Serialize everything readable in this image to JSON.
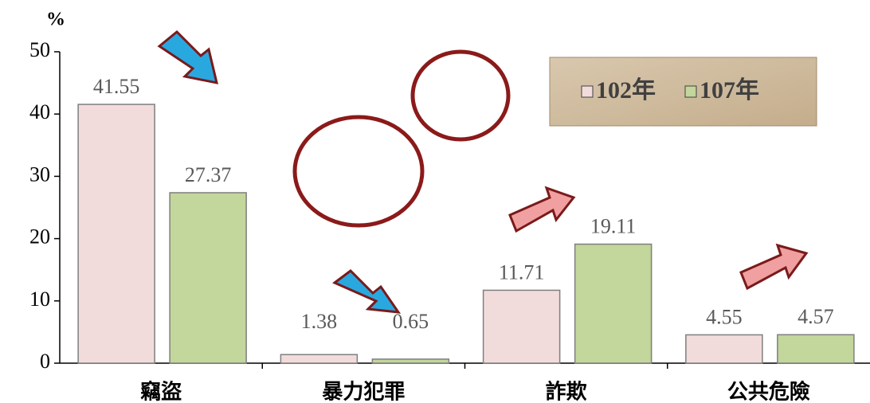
{
  "chart_data": {
    "type": "bar",
    "y_label": "%",
    "categories": [
      "竊盜",
      "暴力犯罪",
      "詐欺",
      "公共危險"
    ],
    "series": [
      {
        "name": "102年",
        "color": "#f2dcdb",
        "values": [
          41.55,
          1.38,
          11.71,
          4.55
        ]
      },
      {
        "name": "107年",
        "color": "#c3d69b",
        "values": [
          27.37,
          0.65,
          19.11,
          4.57
        ]
      }
    ],
    "ylim": [
      0,
      50
    ],
    "yticks": [
      0,
      10,
      20,
      30,
      40,
      50
    ],
    "legend": "upper right"
  }
}
